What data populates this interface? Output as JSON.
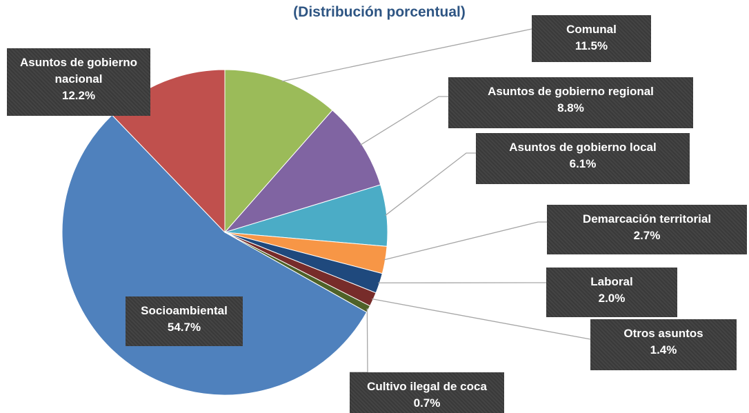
{
  "chart_data": {
    "type": "pie",
    "subtitle": "(Distribución porcentual)",
    "categories": [
      "Comunal",
      "Asuntos de gobierno regional",
      "Asuntos de gobierno local",
      "Demarcación territorial",
      "Laboral",
      "Otros asuntos",
      "Cultivo ilegal de coca",
      "Socioambiental",
      "Asuntos de gobierno nacional"
    ],
    "values": [
      11.5,
      8.8,
      6.1,
      2.7,
      2.0,
      1.4,
      0.7,
      54.7,
      12.2
    ],
    "value_labels": [
      "11.5%",
      "8.8%",
      "6.1%",
      "2.7%",
      "2.0%",
      "1.4%",
      "0.7%",
      "54.7%",
      "12.2%"
    ],
    "colors": [
      "#9bbb59",
      "#8064a2",
      "#4bacc6",
      "#f79646",
      "#1f497d",
      "#772c2a",
      "#4f6228",
      "#4f81bd",
      "#c0504d"
    ]
  }
}
